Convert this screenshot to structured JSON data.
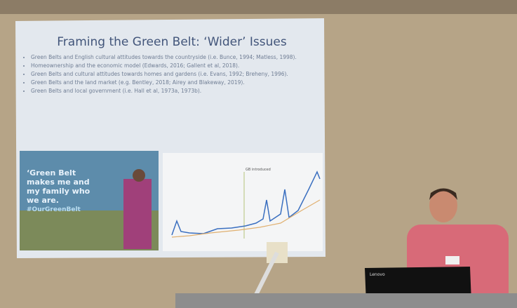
{
  "slide": {
    "title": "Framing the Green Belt: ‘Wider’ Issues",
    "bullets": [
      "Green Belts and English cultural attitudes towards the countryside (i.e. Bunce, 1994; Matless, 1998).",
      "Homeownership and the economic model (Edwards, 2016; Gallent et al, 2018).",
      "Green Belts and cultural attitudes towards homes and gardens (i.e. Evans, 1992; Breheny, 1996).",
      "Green Belts and the land market (e.g. Bentley, 2018; Airey and Blakeway, 2019).",
      "Green Belts and local government (i.e. Hall et al, 1973a, 1973b)."
    ],
    "image_text": [
      "‘Green Belt makes me and my family who we are.",
      "#OurGreenBelt"
    ],
    "chart_annotation": "GB introduced"
  },
  "laptop": {
    "brand": "Lenovo"
  }
}
